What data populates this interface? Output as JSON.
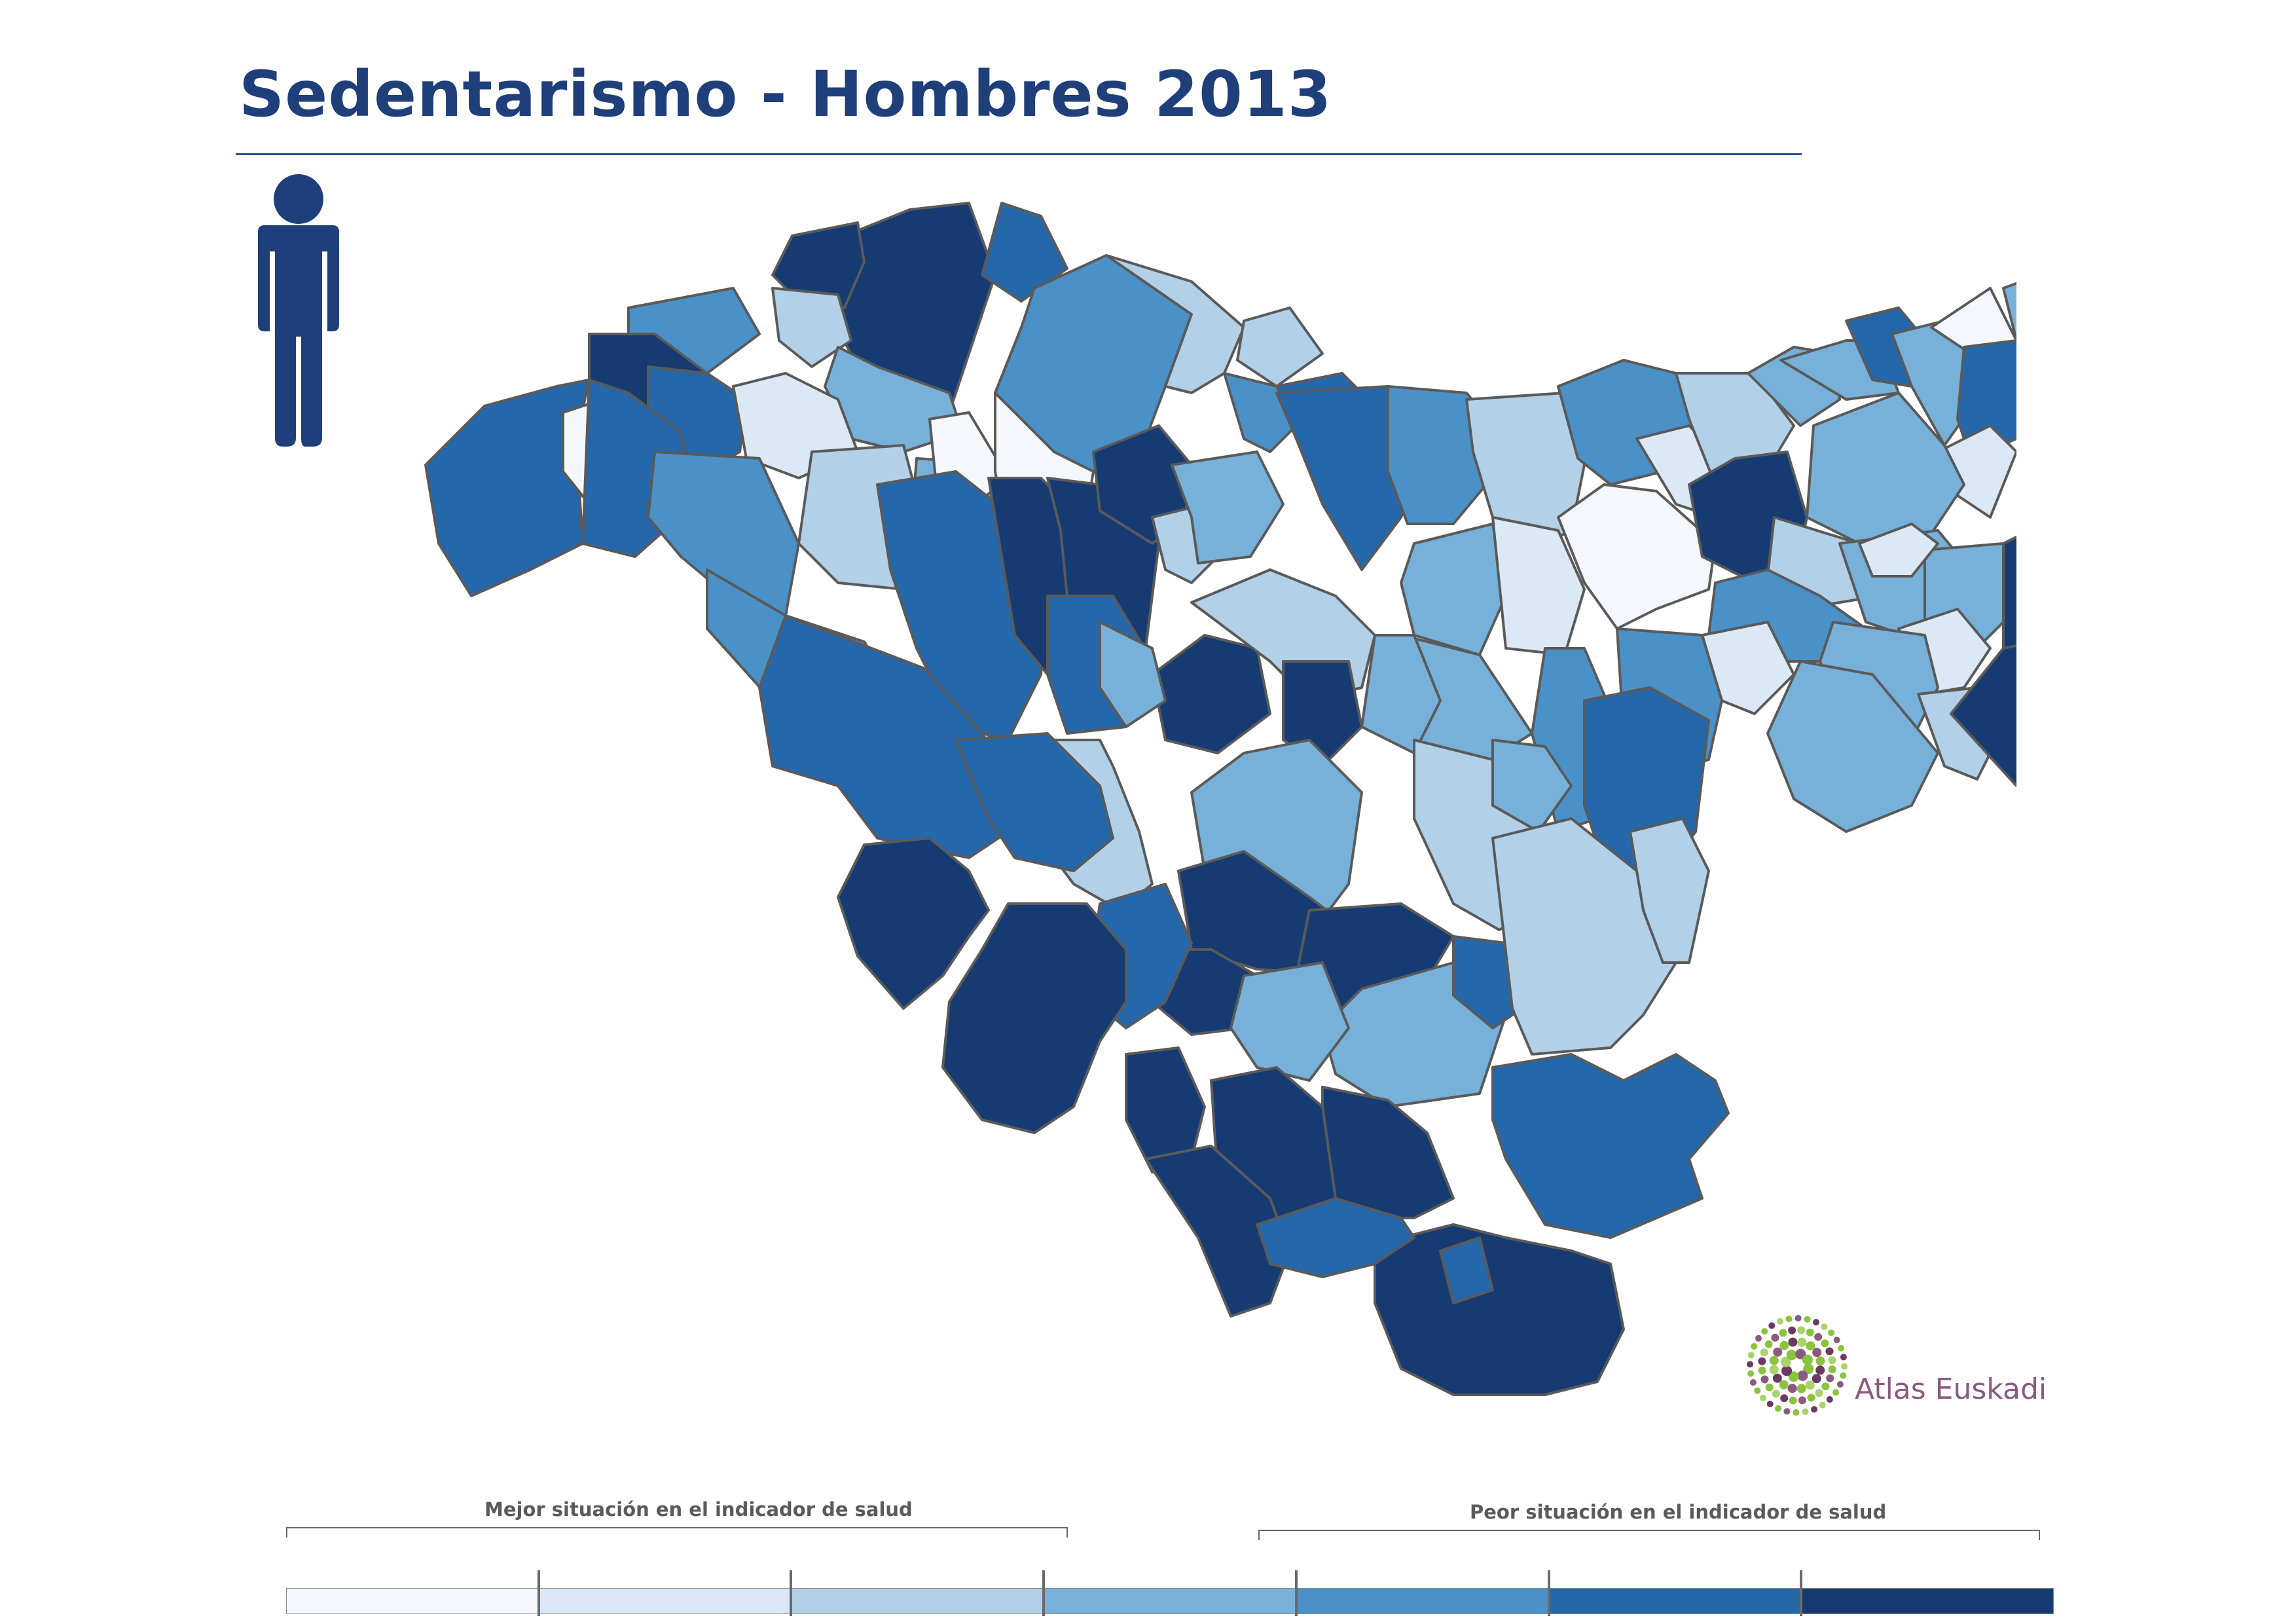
{
  "title": "Sedentarismo - Hombres 2013",
  "icon": "male-person-icon",
  "colors": {
    "title": "#1f3f7a",
    "scale": [
      "#f4f8fd",
      "#dbe8f6",
      "#b2d1e8",
      "#77b1d9",
      "#4a91c8",
      "#2468ab",
      "#163b72"
    ],
    "no_data": "#ffffff",
    "logo_text": "#8a5a80"
  },
  "legend": {
    "left_label": "Mejor situación en el indicador de salud",
    "right_label": "Peor situación en el indicador de salud",
    "bins": 7
  },
  "logo": {
    "text": "Atlas Euskadi",
    "icon": "atlas-euskadi-logo-icon"
  }
}
